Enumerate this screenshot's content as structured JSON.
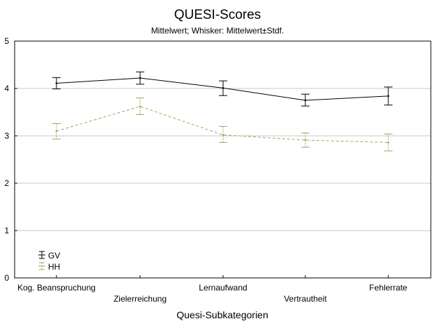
{
  "chart_data": {
    "type": "line",
    "title": "QUESI-Scores",
    "subtitle": "Mittelwert; Whisker: Mittelwert±Stdf.",
    "xlabel": "Quesi-Subkategorien",
    "ylabel": "",
    "ylim": [
      0,
      5
    ],
    "yticks": [
      "0",
      "1",
      "2",
      "3",
      "4",
      "5"
    ],
    "categories": [
      "Kog. Beanspruchung",
      "Zielerreichung",
      "Lernaufwand",
      "Vertrautheit",
      "Fehlerrate"
    ],
    "grid": "horizontal",
    "legend_position": "bottom-left",
    "series": [
      {
        "name": "GV",
        "color": "#000000",
        "line_style": "solid",
        "values": [
          4.11,
          4.22,
          4.01,
          3.75,
          3.84
        ],
        "error_low": [
          3.99,
          4.09,
          3.85,
          3.63,
          3.65
        ],
        "error_high": [
          4.23,
          4.35,
          4.16,
          3.88,
          4.03
        ]
      },
      {
        "name": "HH",
        "color": "#9aa85a",
        "line_style": "dashed",
        "values": [
          3.1,
          3.62,
          3.02,
          2.91,
          2.86
        ],
        "error_low": [
          2.93,
          3.45,
          2.86,
          2.76,
          2.68
        ],
        "error_high": [
          3.26,
          3.8,
          3.2,
          3.06,
          3.04
        ]
      }
    ]
  }
}
